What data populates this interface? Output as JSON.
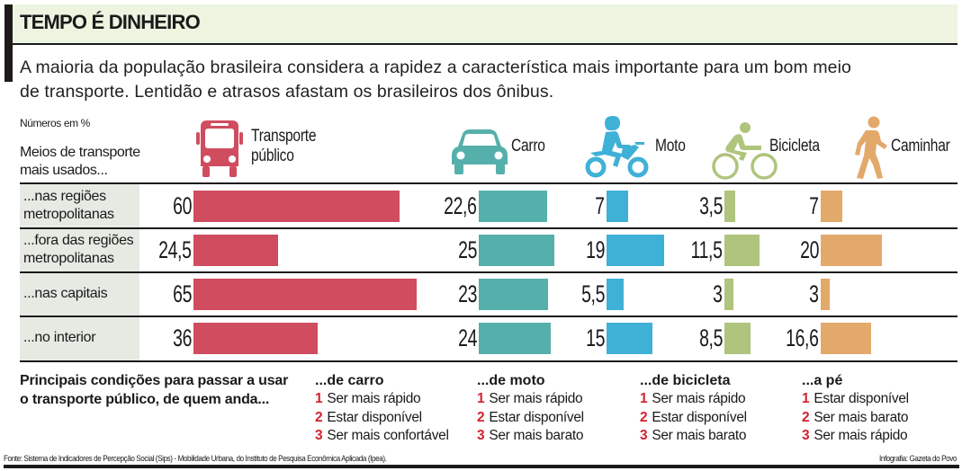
{
  "header": {
    "title": "TEMPO É DINHEIRO",
    "subtitle_line1": "A maioria da população brasileira considera a rapidez a característica mais importante para um bom meio",
    "subtitle_line2": "de transporte. Lentidão e atrasos afastam os brasileiros dos ônibus."
  },
  "units_note": "Números em %",
  "row_header_line1": "Meios de transporte",
  "row_header_line2": "mais usados...",
  "chart_data": {
    "type": "bar",
    "orientation": "horizontal",
    "title": "TEMPO É DINHEIRO",
    "units": "%",
    "categories": [
      {
        "line1": "...nas regiões",
        "line2": "metropolitanas"
      },
      {
        "line1": "...fora das regiões",
        "line2": "metropolitanas"
      },
      {
        "line1": "...nas capitais",
        "line2": ""
      },
      {
        "line1": "...no interior",
        "line2": ""
      }
    ],
    "series": [
      {
        "name_line1": "Transporte",
        "name_line2": "público",
        "icon": "bus-icon",
        "color": "#d04c5f",
        "values": [
          60,
          24.5,
          65,
          36
        ],
        "labels": [
          "60",
          "24,5",
          "65",
          "36"
        ]
      },
      {
        "name_line1": "Carro",
        "name_line2": "",
        "icon": "car-icon",
        "color": "#55b0ac",
        "values": [
          22.6,
          25,
          23,
          24
        ],
        "labels": [
          "22,6",
          "25",
          "23",
          "24"
        ]
      },
      {
        "name_line1": "Moto",
        "name_line2": "",
        "icon": "motorcycle-icon",
        "color": "#3fb1d7",
        "values": [
          7,
          19,
          5.5,
          15
        ],
        "labels": [
          "7",
          "19",
          "5,5",
          "15"
        ]
      },
      {
        "name_line1": "Bicicleta",
        "name_line2": "",
        "icon": "bicycle-icon",
        "color": "#afc47c",
        "values": [
          3.5,
          11.5,
          3,
          8.5
        ],
        "labels": [
          "3,5",
          "11,5",
          "3",
          "8,5"
        ]
      },
      {
        "name_line1": "Caminhar",
        "name_line2": "",
        "icon": "pedestrian-icon",
        "color": "#e3a96b",
        "values": [
          7,
          20,
          3,
          16.6
        ],
        "labels": [
          "7",
          "20",
          "3",
          "16,6"
        ]
      }
    ]
  },
  "conditions": {
    "title_line1": "Principais condições para passar a usar",
    "title_line2": "o transporte público, de quem anda...",
    "groups": [
      {
        "heading": "...de carro",
        "items": [
          {
            "n": "1",
            "text": "Ser mais rápido"
          },
          {
            "n": "2",
            "text": "Estar disponível"
          },
          {
            "n": "3",
            "text": "Ser mais confortável"
          }
        ]
      },
      {
        "heading": "...de moto",
        "items": [
          {
            "n": "1",
            "text": "Ser mais rápido"
          },
          {
            "n": "2",
            "text": "Estar disponível"
          },
          {
            "n": "3",
            "text": "Ser mais barato"
          }
        ]
      },
      {
        "heading": "...de bicicleta",
        "items": [
          {
            "n": "1",
            "text": "Ser mais rápido"
          },
          {
            "n": "2",
            "text": "Estar disponível"
          },
          {
            "n": "3",
            "text": "Ser mais barato"
          }
        ]
      },
      {
        "heading": "...a pé",
        "items": [
          {
            "n": "1",
            "text": "Estar disponível"
          },
          {
            "n": "2",
            "text": "Ser mais barato"
          },
          {
            "n": "3",
            "text": "Ser mais rápido"
          }
        ]
      }
    ]
  },
  "footer": {
    "source": "Fonte: Sistema de Indicadores de Percepção Social (Sips) - Mobilidade Urbana, do Instituto de Pesquisa Econômica Aplicada (Ipea).",
    "credit": "Infografia: Gazeta do Povo"
  },
  "colors": {
    "header_bg": "#edf4e0",
    "label_bg": "#e6eae3",
    "rank_number": "#d2222e"
  }
}
